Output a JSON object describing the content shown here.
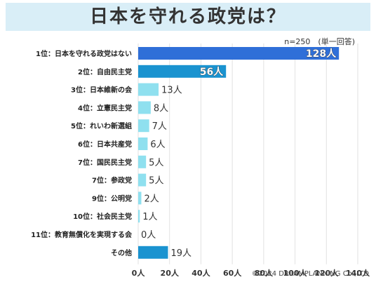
{
  "title": "日本を守れる政党は？",
  "sample_note": "n=250　(単一回答)",
  "copyright": "©2024 DREAMPLANNING Co.,LTD",
  "unit": "人",
  "colors": {
    "top_bar": "#2f6fd8",
    "second_bar": "#1a93d0",
    "other_bars": "#8fe0ef",
    "last_bar": "#1a93d0",
    "grid": "#e2e2e2"
  },
  "chart_data": {
    "type": "bar",
    "orientation": "horizontal",
    "categories": [
      "1位：日本を守れる政党はない",
      "2位：自由民主党",
      "3位：日本維新の会",
      "4位：立憲民主党",
      "5位：れいわ新選組",
      "6位：日本共産党",
      "7位：国民民主党",
      "7位：参政党",
      "9位：公明党",
      "10位：社会民主党",
      "11位：教育無償化を実現する会",
      "その他"
    ],
    "values": [
      128,
      56,
      13,
      8,
      7,
      6,
      5,
      5,
      2,
      1,
      0,
      19
    ],
    "xlim": [
      0,
      140
    ],
    "xticks": [
      "0人",
      "20人",
      "40人",
      "60人",
      "80人",
      "100人",
      "120人",
      "140人"
    ],
    "grid": true
  }
}
